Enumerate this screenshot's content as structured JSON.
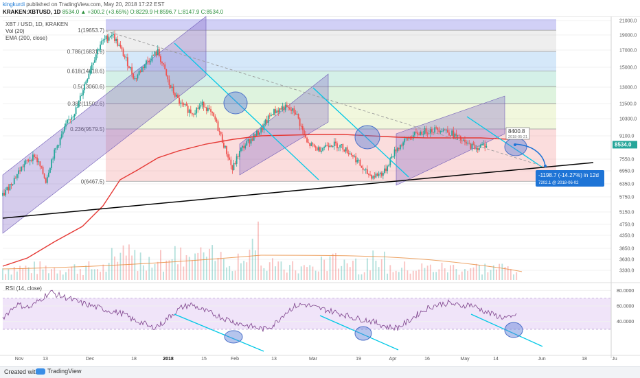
{
  "header": {
    "username": "kingkurdi",
    "published": "published on TradingView.com, May 20, 2018 17:22 EST",
    "symbol": "KRAKEN:XBTUSD, 1D",
    "last": "8534.0",
    "change": "▲ +300.2 (+3.65%)",
    "open": "O:8229.9",
    "high": "H:8596.7",
    "low": "L:8147.9",
    "close": "C:8534.0"
  },
  "legends": {
    "main_title": "XBT / USD, 1D, KRAKEN",
    "vol": "Vol (20)",
    "ema": "EMA (200, close)",
    "rsi": "RSI (14, close)"
  },
  "colors": {
    "candle_up": "#26a69a",
    "candle_down": "#ef5350",
    "ema": "#e53935",
    "trendline": "#00c8e6",
    "channel_fill": "#7b61c4",
    "circle": "#5b7fd6",
    "rsi_line": "#7b3f8a",
    "rsi_band": "#e9d8f6",
    "support": "#000000",
    "price_tag": "#26a69a",
    "projection": "#1e74d6"
  },
  "chart_data": {
    "type": "candlestick",
    "symbol": "XBT/USD",
    "interval": "1D",
    "exchange": "KRAKEN",
    "y_ticks": [
      21000.0,
      19000.0,
      17000.0,
      15000.0,
      13000.0,
      11500.0,
      10300.0,
      9100.0,
      7550.0,
      6950.0,
      6350.0,
      5750.0,
      5150.0,
      4750.0,
      4350.0,
      3850.0,
      3630.0,
      3330.0
    ],
    "x_ticks": [
      "Nov",
      "13",
      "Dec",
      "18",
      "2018",
      "15",
      "Feb",
      "13",
      "Mar",
      "19",
      "Apr",
      "16",
      "May",
      "14",
      "Jun",
      "18",
      "Ju"
    ],
    "fibonacci": [
      {
        "label": "1(19653.7)",
        "price": 19653.7
      },
      {
        "label": "0.786(16831.9)",
        "price": 16831.9
      },
      {
        "label": "0.618(14618.6)",
        "price": 14618.6
      },
      {
        "label": "0.5(13060.6)",
        "price": 13060.6
      },
      {
        "label": "0.382(11502.6)",
        "price": 11502.6
      },
      {
        "label": "0.236(9579.5)",
        "price": 9579.5
      },
      {
        "label": "0(6467.5)",
        "price": 6467.5
      }
    ],
    "current_price": "8534.0",
    "callout": {
      "price": "8400.8",
      "date": "2018-05-21"
    },
    "projection": {
      "text": "-1198.7 (-14.27%) in 12d",
      "target": "7202.1",
      "date": "@ 2018-06-02"
    },
    "rsi_ticks": [
      "80.0000",
      "60.0000",
      "40.0000"
    ],
    "rsi_levels": [
      70,
      30
    ]
  },
  "footer": {
    "created_with": "Created with",
    "brand": "TradingView"
  }
}
